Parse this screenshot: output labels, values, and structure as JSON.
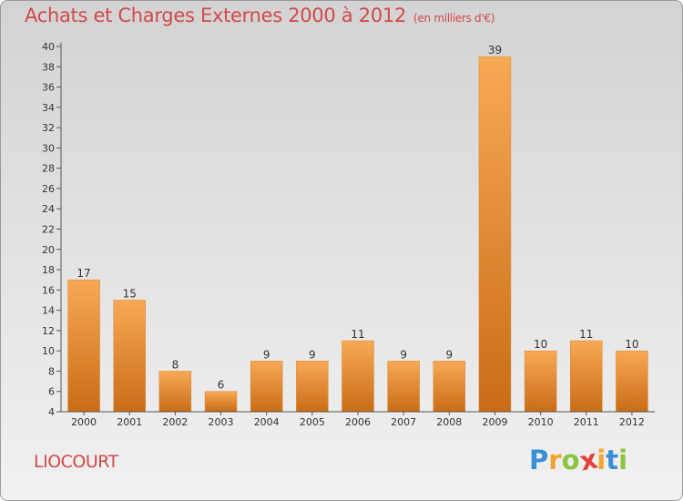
{
  "chart_data": {
    "type": "bar",
    "title": "Achats et Charges Externes 2000 à 2012",
    "subtitle": "(en milliers d'€)",
    "categories": [
      "2000",
      "2001",
      "2002",
      "2003",
      "2004",
      "2005",
      "2006",
      "2007",
      "2008",
      "2009",
      "2010",
      "2011",
      "2012"
    ],
    "values": [
      17,
      15,
      8,
      6,
      9,
      9,
      11,
      9,
      9,
      39,
      10,
      11,
      10
    ],
    "ylim": [
      4,
      40
    ],
    "yticks": [
      4,
      6,
      8,
      10,
      12,
      14,
      16,
      18,
      20,
      22,
      24,
      26,
      28,
      30,
      32,
      34,
      36,
      38,
      40
    ],
    "grid": false,
    "bar_color_top": "#f8a955",
    "bar_color_bottom": "#c96c16"
  },
  "location_label": "LIOCOURT",
  "logo": {
    "letters": [
      "P",
      "r",
      "o",
      "x",
      "i",
      "t",
      "i"
    ],
    "colors": [
      "#3b8fd6",
      "#f2a531",
      "#8bc43f",
      "#e2423b",
      "#f2a531",
      "#3b8fd6",
      "#8bc43f"
    ]
  }
}
